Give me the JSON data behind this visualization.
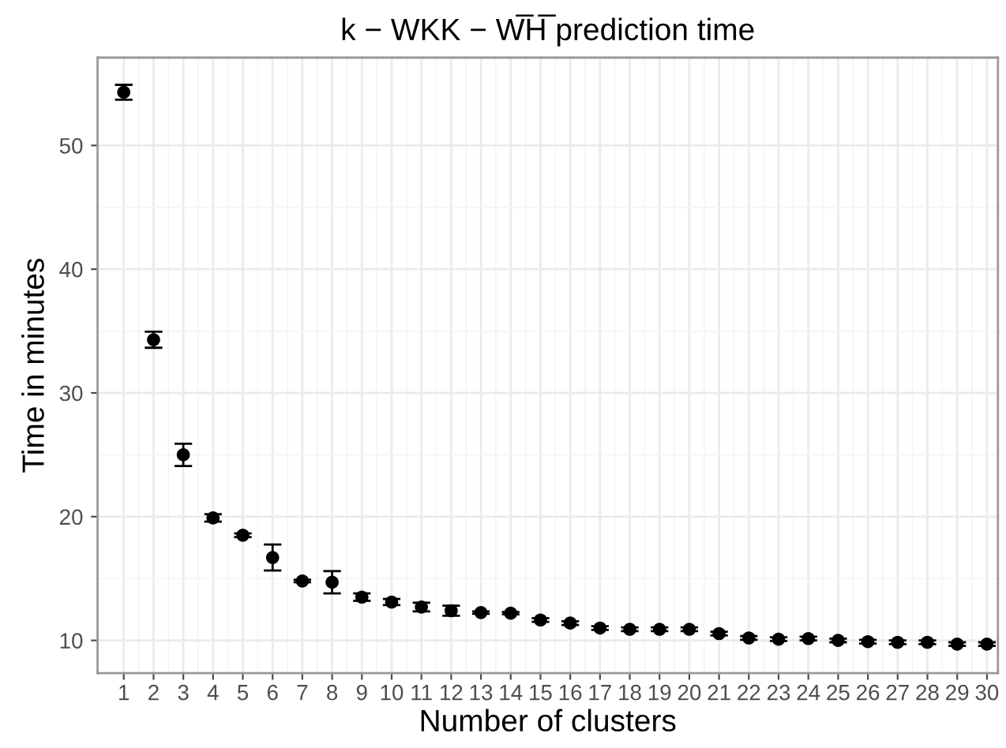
{
  "chart_data": {
    "type": "scatter",
    "title": "k − WKK − W̅H̅ prediction time",
    "xlabel": "Number of clusters",
    "ylabel": "Time in minutes",
    "x": [
      1,
      2,
      3,
      4,
      5,
      6,
      7,
      8,
      9,
      10,
      11,
      12,
      13,
      14,
      15,
      16,
      17,
      18,
      19,
      20,
      21,
      22,
      23,
      24,
      25,
      26,
      27,
      28,
      29,
      30
    ],
    "values": [
      54.3,
      34.3,
      25.0,
      19.9,
      18.5,
      16.7,
      14.8,
      14.7,
      13.5,
      13.1,
      12.7,
      12.4,
      12.25,
      12.2,
      11.65,
      11.4,
      11.0,
      10.9,
      10.9,
      10.9,
      10.55,
      10.2,
      10.1,
      10.15,
      10.0,
      9.9,
      9.85,
      9.85,
      9.7,
      9.7
    ],
    "errors": [
      0.6,
      0.65,
      0.9,
      0.3,
      0.15,
      1.05,
      0.1,
      0.9,
      0.3,
      0.25,
      0.35,
      0.4,
      0.1,
      0.1,
      0.15,
      0.15,
      0.15,
      0.15,
      0.15,
      0.15,
      0.15,
      0.15,
      0.15,
      0.15,
      0.15,
      0.15,
      0.15,
      0.15,
      0.15,
      0.15
    ],
    "color": "#000000",
    "marker": "circle",
    "grid": true,
    "xlim": [
      0.12,
      30.37
    ],
    "xticks": [
      1,
      2,
      3,
      4,
      5,
      6,
      7,
      8,
      9,
      10,
      11,
      12,
      13,
      14,
      15,
      16,
      17,
      18,
      19,
      20,
      21,
      22,
      23,
      24,
      25,
      26,
      27,
      28,
      29,
      30
    ],
    "ylim": [
      7.35,
      57.1
    ],
    "yticks": [
      10,
      20,
      30,
      40,
      50
    ]
  }
}
